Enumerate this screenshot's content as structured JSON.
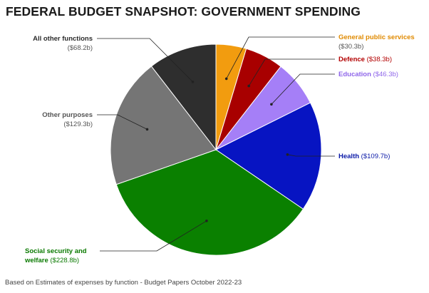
{
  "title": "FEDERAL BUDGET SNAPSHOT: GOVERNMENT SPENDING",
  "footnote": "Based on Estimates of expenses by function - Budget Papers October 2022-23",
  "chart_data": {
    "type": "pie",
    "title": "FEDERAL BUDGET SNAPSHOT: GOVERNMENT SPENDING",
    "unit": "$b",
    "start_angle_deg": 0,
    "direction": "clockwise",
    "slices": [
      {
        "name": "General public services",
        "value": 30.3,
        "value_label": "($30.3b)",
        "color": "#f29c0f",
        "label_color": "#e08a00"
      },
      {
        "name": "Defence",
        "value": 38.3,
        "value_label": "($38.3b)",
        "color": "#a80000",
        "label_color": "#b30000"
      },
      {
        "name": "Education",
        "value": 46.3,
        "value_label": "($46.3b)",
        "color": "#a57ff7",
        "label_color": "#8f66ea"
      },
      {
        "name": "Health",
        "value": 109.7,
        "value_label": "($109.7b)",
        "color": "#0714c2",
        "label_color": "#0b1aa8"
      },
      {
        "name": "Social security and welfare",
        "name_lines": [
          "Social security and",
          "welfare"
        ],
        "value": 228.8,
        "value_label": "($228.8b)",
        "color": "#0a8000",
        "label_color": "#0a7a00"
      },
      {
        "name": "Other purposes",
        "value": 129.3,
        "value_label": "($129.3b)",
        "color": "#757575",
        "label_color": "#555555"
      },
      {
        "name": "All other functions",
        "value": 68.2,
        "value_label": "($68.2b)",
        "color": "#2e2e2e",
        "label_color": "#2b2b2b"
      }
    ]
  }
}
